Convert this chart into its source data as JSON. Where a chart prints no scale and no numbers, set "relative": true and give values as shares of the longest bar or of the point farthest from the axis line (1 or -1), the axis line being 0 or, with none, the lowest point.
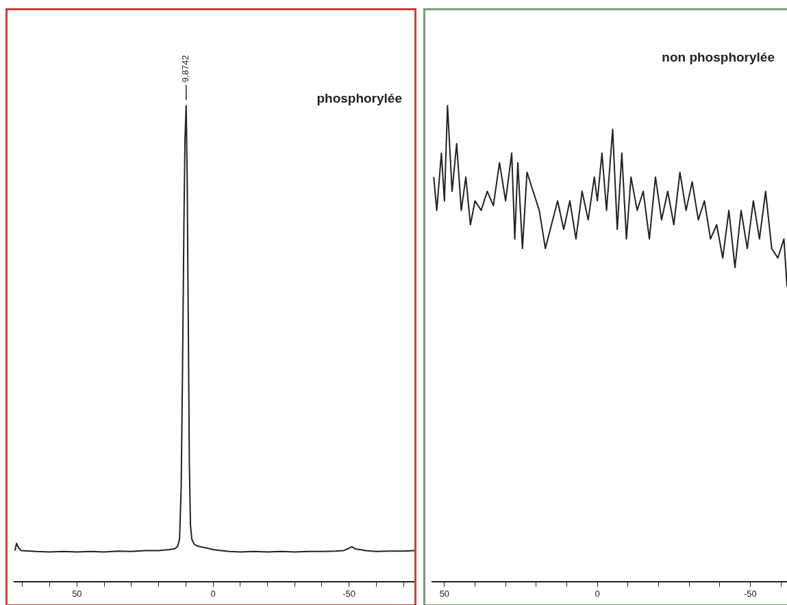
{
  "chart_data": [
    {
      "type": "line",
      "relative": true,
      "annotations": [
        "phosphorylée",
        {
          "text": "9.8742",
          "x": 9.8742,
          "y": 1
        }
      ],
      "xlim": [
        73,
        -74
      ],
      "xticks": [
        {
          "value": 70,
          "label": null
        },
        {
          "value": 60,
          "label": null
        },
        50,
        {
          "value": 40,
          "label": null
        },
        {
          "value": 30,
          "label": null
        },
        {
          "value": 20,
          "label": null
        },
        {
          "value": 10,
          "label": null
        },
        0,
        {
          "value": -10,
          "label": null
        },
        {
          "value": -20,
          "label": null
        },
        {
          "value": -30,
          "label": null
        },
        {
          "value": -40,
          "label": null
        },
        -50,
        {
          "value": -60,
          "label": null
        },
        {
          "value": -70,
          "label": null
        }
      ],
      "grid": false,
      "legend": false,
      "marker": "none",
      "line_style": "solid",
      "series": [
        {
          "color": "#222222",
          "x": [
            72.8,
            72.2,
            71.5,
            70.5,
            65,
            60,
            55,
            50,
            45,
            40,
            35,
            30,
            25,
            20,
            16,
            14,
            13,
            12.3,
            11.7,
            11.2,
            10.7,
            10.3,
            9.87,
            9.5,
            9.1,
            8.7,
            8.3,
            7.8,
            7,
            6,
            4,
            2,
            0,
            -3,
            -6,
            -10,
            -15,
            -20,
            -25,
            -30,
            -35,
            -40,
            -45,
            -48,
            -50,
            -51,
            -52.5,
            -54,
            -56,
            -60,
            -65,
            -70,
            -74
          ],
          "values": [
            0.066,
            0.081,
            0.072,
            0.066,
            0.064,
            0.063,
            0.064,
            0.063,
            0.064,
            0.063,
            0.065,
            0.064,
            0.066,
            0.066,
            0.068,
            0.07,
            0.075,
            0.09,
            0.2,
            0.45,
            0.75,
            0.93,
            1,
            0.85,
            0.55,
            0.25,
            0.12,
            0.09,
            0.08,
            0.076,
            0.073,
            0.071,
            0.068,
            0.066,
            0.064,
            0.063,
            0.064,
            0.063,
            0.064,
            0.063,
            0.064,
            0.064,
            0.065,
            0.066,
            0.071,
            0.074,
            0.069,
            0.068,
            0.066,
            0.064,
            0.065,
            0.065,
            0.066
          ]
        }
      ]
    },
    {
      "type": "line",
      "relative": true,
      "annotations": [
        "non phosphorylée"
      ],
      "xlim": [
        54,
        -62
      ],
      "xticks": [
        50,
        {
          "value": 40,
          "label": null
        },
        {
          "value": 30,
          "label": null
        },
        {
          "value": 20,
          "label": null
        },
        {
          "value": 10,
          "label": null
        },
        0,
        {
          "value": -10,
          "label": null
        },
        {
          "value": -20,
          "label": null
        },
        {
          "value": -30,
          "label": null
        },
        {
          "value": -40,
          "label": null
        },
        -50,
        {
          "value": -60,
          "label": null
        }
      ],
      "grid": false,
      "legend": false,
      "marker": "none",
      "line_style": "solid",
      "series": [
        {
          "color": "#222222",
          "x": [
            53.5,
            52.5,
            51,
            50,
            49,
            47.5,
            46,
            44.5,
            43,
            41.5,
            40,
            38,
            36,
            34,
            32,
            30,
            28,
            27,
            26,
            24.5,
            23,
            21,
            19,
            17,
            15,
            13,
            11,
            9,
            7,
            5,
            3,
            1,
            0,
            -1.5,
            -3,
            -5,
            -6.5,
            -8,
            -9.5,
            -11,
            -13,
            -15,
            -17,
            -19,
            -21,
            -23,
            -25,
            -27,
            -29,
            -31,
            -33,
            -35,
            -37,
            -39,
            -41,
            -43,
            -45,
            -47,
            -49,
            -51,
            -53,
            -55,
            -57,
            -59,
            -61,
            -62
          ],
          "values": [
            0.85,
            0.78,
            0.9,
            0.8,
            1,
            0.82,
            0.92,
            0.78,
            0.85,
            0.75,
            0.8,
            0.78,
            0.82,
            0.79,
            0.88,
            0.8,
            0.9,
            0.72,
            0.88,
            0.7,
            0.86,
            0.82,
            0.78,
            0.7,
            0.75,
            0.8,
            0.74,
            0.8,
            0.72,
            0.82,
            0.76,
            0.85,
            0.8,
            0.9,
            0.78,
            0.95,
            0.74,
            0.9,
            0.72,
            0.85,
            0.78,
            0.82,
            0.72,
            0.85,
            0.76,
            0.82,
            0.75,
            0.86,
            0.78,
            0.84,
            0.76,
            0.8,
            0.72,
            0.75,
            0.68,
            0.78,
            0.66,
            0.78,
            0.7,
            0.8,
            0.72,
            0.82,
            0.7,
            0.68,
            0.72,
            0.62
          ]
        }
      ]
    }
  ]
}
